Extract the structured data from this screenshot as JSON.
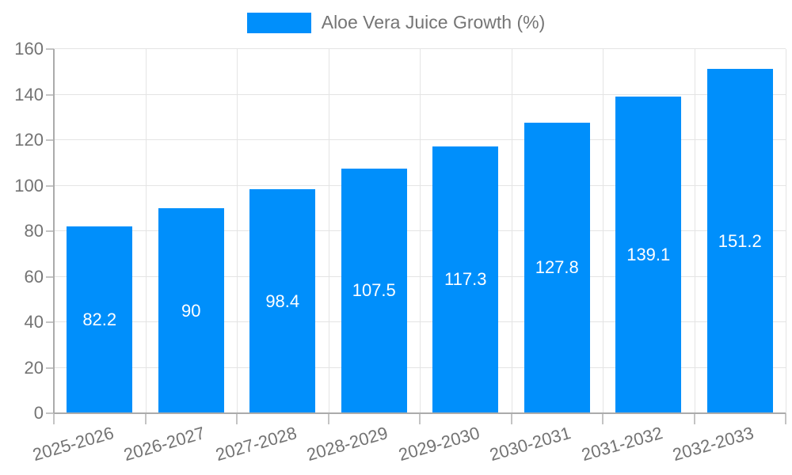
{
  "chart_data": {
    "type": "bar",
    "title": "",
    "legend_label": "Aloe Vera Juice Growth (%)",
    "legend_position": "top-center",
    "categories": [
      "2025-2026",
      "2026-2027",
      "2027-2028",
      "2028-2029",
      "2029-2030",
      "2030-2031",
      "2031-2032",
      "2032-2033"
    ],
    "series": [
      {
        "name": "Aloe Vera Juice Growth (%)",
        "values": [
          82.2,
          90,
          98.4,
          107.5,
          117.3,
          127.8,
          139.1,
          151.2
        ]
      }
    ],
    "value_labels": [
      "82.2",
      "90",
      "98.4",
      "107.5",
      "117.3",
      "127.8",
      "139.1",
      "151.2"
    ],
    "yticks": [
      0,
      20,
      40,
      60,
      80,
      100,
      120,
      140,
      160
    ],
    "ylim": [
      0,
      160
    ],
    "xlabel": "",
    "ylabel": "",
    "grid": "both",
    "x_label_rotation_deg": -16,
    "bar_width_fraction": 0.72,
    "colors": {
      "bar": "#008FFB",
      "value_label": "#FFFFFF",
      "axis_text": "#737373",
      "legend_text": "#757575",
      "gridline": "#E4E4E4",
      "axis_line": "#ABABAB",
      "tick": "#C4C4C4",
      "background": "#FFFFFF"
    }
  }
}
